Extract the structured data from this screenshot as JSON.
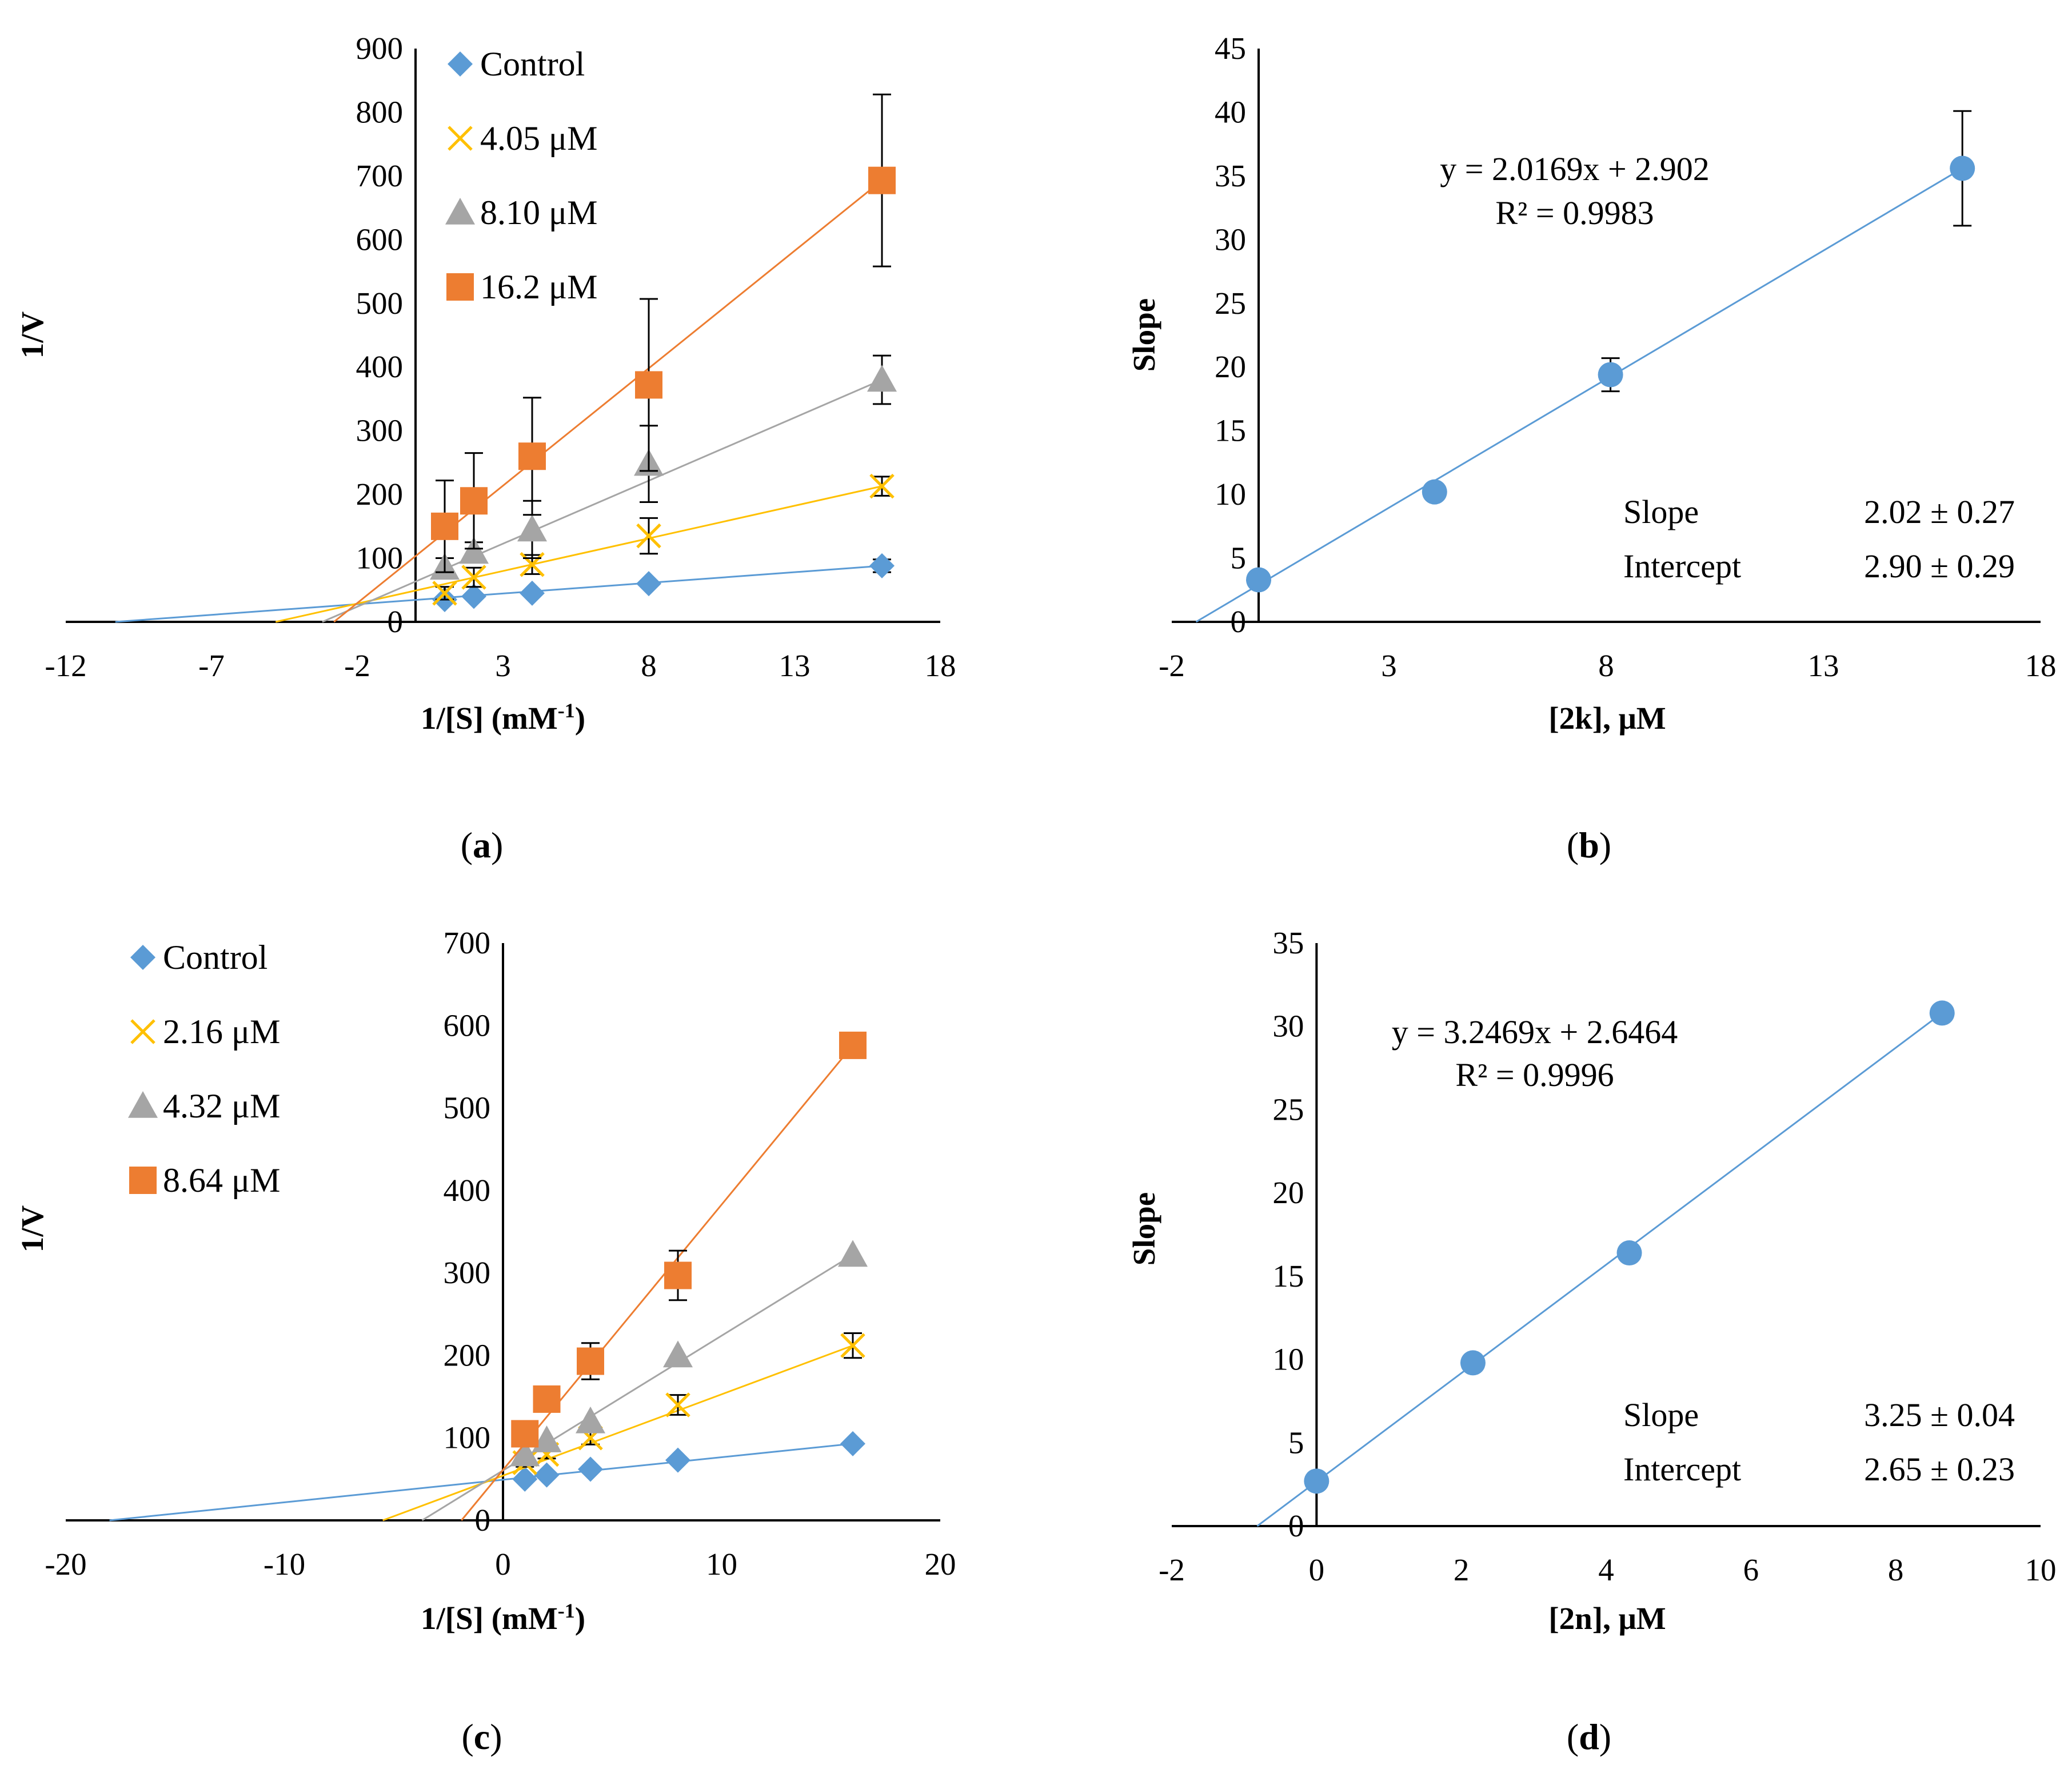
{
  "colors": {
    "control": "#5b9bd5",
    "low": "#ffc000",
    "mid": "#a5a5a5",
    "high": "#ed7d31",
    "axis": "#000000",
    "error_bar": "#000000"
  },
  "chart_data": [
    {
      "id": "a",
      "type": "line",
      "panel_label": "a",
      "xlabel": "1/[S] (mM",
      "xlabel_sup": "-1",
      "xlabel_tail": ")",
      "ylabel": "1/V",
      "xlim": [
        -12,
        18
      ],
      "ylim": [
        0,
        900
      ],
      "xticks": [
        -12,
        -7,
        -2,
        3,
        8,
        13,
        18
      ],
      "yticks": [
        0,
        100,
        200,
        300,
        400,
        500,
        600,
        700,
        800,
        900
      ],
      "legend_position": "top-left-inside",
      "series": [
        {
          "name": "Control",
          "marker": "diamond",
          "color_key": "control",
          "x": [
            1,
            2,
            4,
            8,
            16
          ],
          "y": [
            35,
            40,
            45,
            60,
            88
          ],
          "err": [
            0,
            0,
            0,
            0,
            10
          ],
          "fit_x": [
            -10.3,
            16
          ],
          "fit_y": [
            0,
            88
          ]
        },
        {
          "name": "4.05 μM",
          "marker": "x",
          "color_key": "low",
          "x": [
            1,
            2,
            4,
            8,
            16
          ],
          "y": [
            45,
            70,
            90,
            135,
            213
          ],
          "err": [
            10,
            15,
            15,
            28,
            15
          ],
          "fit_x": [
            -4.8,
            16
          ],
          "fit_y": [
            0,
            213
          ]
        },
        {
          "name": "8.10 μM",
          "marker": "triangle",
          "color_key": "mid",
          "x": [
            1,
            2,
            4,
            8,
            16
          ],
          "y": [
            85,
            110,
            145,
            248,
            380
          ],
          "err": [
            15,
            15,
            45,
            60,
            38
          ],
          "fit_x": [
            -3.2,
            16
          ],
          "fit_y": [
            0,
            380
          ]
        },
        {
          "name": "16.2 μM",
          "marker": "square",
          "color_key": "high",
          "x": [
            1,
            2,
            4,
            8,
            16
          ],
          "y": [
            150,
            190,
            260,
            372,
            693
          ],
          "err": [
            72,
            75,
            92,
            135,
            135
          ],
          "fit_x": [
            -2.8,
            16
          ],
          "fit_y": [
            0,
            693
          ]
        }
      ]
    },
    {
      "id": "b",
      "type": "scatter",
      "panel_label": "b",
      "xlabel": "[2k], μM",
      "ylabel": "Slope",
      "xlim": [
        -2,
        18
      ],
      "ylim": [
        0,
        45
      ],
      "xticks": [
        -2,
        3,
        8,
        13,
        18
      ],
      "yticks": [
        0,
        5,
        10,
        15,
        20,
        25,
        30,
        35,
        40,
        45
      ],
      "equation": "y = 2.0169x + 2.902",
      "r2": "R² = 0.9983",
      "stats": [
        {
          "label": "Slope",
          "value": "2.02 ± 0.27"
        },
        {
          "label": "Intercept",
          "value": "2.90 ± 0.29"
        }
      ],
      "series": [
        {
          "name": "Slope",
          "marker": "circle",
          "color_key": "control",
          "x": [
            0,
            4.05,
            8.1,
            16.2
          ],
          "y": [
            3.3,
            10.2,
            19.4,
            35.6
          ],
          "err": [
            0,
            0,
            1.3,
            4.5
          ],
          "fit_x": [
            -1.44,
            16.2
          ],
          "fit_y": [
            0,
            35.6
          ]
        }
      ]
    },
    {
      "id": "c",
      "type": "line",
      "panel_label": "c",
      "xlabel": "1/[S] (mM",
      "xlabel_sup": "-1",
      "xlabel_tail": ")",
      "ylabel": "1/V",
      "xlim": [
        -20,
        20
      ],
      "ylim": [
        0,
        700
      ],
      "xticks": [
        -20,
        -10,
        0,
        10,
        20
      ],
      "yticks": [
        0,
        100,
        200,
        300,
        400,
        500,
        600,
        700
      ],
      "legend_position": "top-left-outside",
      "series": [
        {
          "name": "Control",
          "marker": "diamond",
          "color_key": "control",
          "x": [
            1,
            2,
            4,
            8,
            16
          ],
          "y": [
            50,
            55,
            62,
            73,
            93
          ],
          "err": [
            0,
            0,
            0,
            0,
            0
          ],
          "fit_x": [
            -18,
            16
          ],
          "fit_y": [
            0,
            93
          ]
        },
        {
          "name": "2.16 μM",
          "marker": "x",
          "color_key": "low",
          "x": [
            1,
            2,
            4,
            8,
            16
          ],
          "y": [
            70,
            80,
            100,
            140,
            212
          ],
          "err": [
            5,
            5,
            8,
            12,
            15
          ],
          "fit_x": [
            -5.5,
            16
          ],
          "fit_y": [
            0,
            212
          ]
        },
        {
          "name": "4.32 μM",
          "marker": "triangle",
          "color_key": "mid",
          "x": [
            1,
            2,
            4,
            8,
            16
          ],
          "y": [
            80,
            97,
            120,
            200,
            322
          ],
          "err": [
            0,
            0,
            0,
            0,
            0
          ],
          "fit_x": [
            -3.7,
            16
          ],
          "fit_y": [
            0,
            322
          ]
        },
        {
          "name": "8.64 μM",
          "marker": "square",
          "color_key": "high",
          "x": [
            1,
            2,
            4,
            8,
            16
          ],
          "y": [
            105,
            147,
            193,
            297,
            576
          ],
          "err": [
            0,
            0,
            22,
            30,
            0
          ],
          "fit_x": [
            -1.9,
            16
          ],
          "fit_y": [
            0,
            576
          ]
        }
      ]
    },
    {
      "id": "d",
      "type": "scatter",
      "panel_label": "d",
      "xlabel": "[2n], μM",
      "ylabel": "Slope",
      "xlim": [
        -2,
        10
      ],
      "ylim": [
        0,
        35
      ],
      "xticks": [
        -2,
        0,
        2,
        4,
        6,
        8,
        10
      ],
      "yticks": [
        0,
        5,
        10,
        15,
        20,
        25,
        30,
        35
      ],
      "equation": "y = 3.2469x + 2.6464",
      "r2": "R² = 0.9996",
      "stats": [
        {
          "label": "Slope",
          "value": "3.25 ± 0.04"
        },
        {
          "label": "Intercept",
          "value": "2.65 ± 0.23"
        }
      ],
      "series": [
        {
          "name": "Slope",
          "marker": "circle",
          "color_key": "control",
          "x": [
            0,
            2.16,
            4.32,
            8.64
          ],
          "y": [
            2.7,
            9.8,
            16.4,
            30.8
          ],
          "err": [
            0,
            0.4,
            0,
            0
          ],
          "fit_x": [
            -0.82,
            8.64
          ],
          "fit_y": [
            0,
            30.8
          ]
        }
      ]
    }
  ]
}
